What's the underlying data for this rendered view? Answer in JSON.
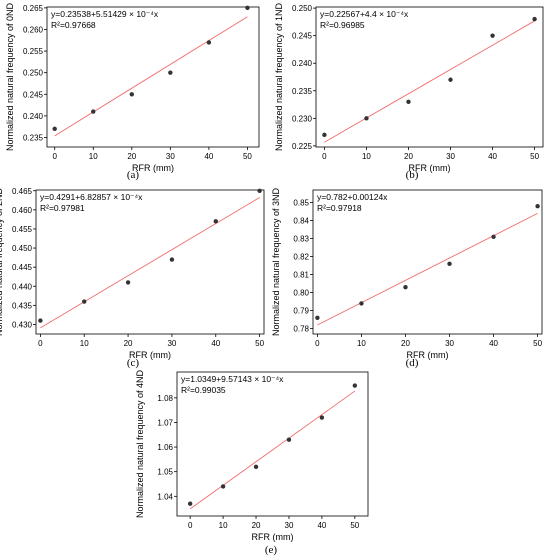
{
  "colors": {
    "fit_line": "#f26b6b",
    "point": "#333333",
    "axis": "#000000"
  },
  "chart_data": [
    {
      "type": "scatter",
      "panel_label": "(a)",
      "xlabel": "RFR (mm)",
      "ylabel": "Normalized natural frequency of 0ND",
      "xlim": [
        -2,
        53
      ],
      "ylim": [
        0.2328,
        0.2652
      ],
      "xticks": [
        0,
        10,
        20,
        30,
        40,
        50
      ],
      "xtick_labels": [
        "0",
        "10",
        "20",
        "30",
        "40",
        "50"
      ],
      "yticks": [
        0.235,
        0.24,
        0.245,
        0.25,
        0.255,
        0.26,
        0.265
      ],
      "ytick_labels": [
        "0.235",
        "0.240",
        "0.245",
        "0.250",
        "0.255",
        "0.260",
        "0.265"
      ],
      "x": [
        0,
        10,
        20,
        30,
        40,
        50
      ],
      "y": [
        0.237,
        0.241,
        0.245,
        0.25,
        0.257,
        0.265
      ],
      "fit": {
        "intercept": 0.23538,
        "slope": 0.000551429
      },
      "equation": "y=0.23538+5.51429 × 10⁻⁴x",
      "r2": "R²=0.97668"
    },
    {
      "type": "scatter",
      "panel_label": "(b)",
      "xlabel": "RFR (mm)",
      "ylabel": "Normalized natural frequency of 1ND",
      "xlim": [
        -2,
        52
      ],
      "ylim": [
        0.2248,
        0.2502
      ],
      "xticks": [
        0,
        10,
        20,
        30,
        40,
        50
      ],
      "xtick_labels": [
        "0",
        "10",
        "20",
        "30",
        "40",
        "50"
      ],
      "yticks": [
        0.225,
        0.23,
        0.235,
        0.24,
        0.245,
        0.25
      ],
      "ytick_labels": [
        "0.225",
        "0.230",
        "0.235",
        "0.240",
        "0.245",
        "0.250"
      ],
      "x": [
        0,
        10,
        20,
        30,
        40,
        50
      ],
      "y": [
        0.227,
        0.23,
        0.233,
        0.237,
        0.245,
        0.248
      ],
      "fit": {
        "intercept": 0.22567,
        "slope": 0.00044
      },
      "equation": "y=0.22567+4.4 × 10⁻⁴x",
      "r2": "R²=0.96985"
    },
    {
      "type": "scatter",
      "panel_label": "(c)",
      "xlabel": "RFR (mm)",
      "ylabel": "Normalized natural frequency of 2ND",
      "xlim": [
        -1,
        51
      ],
      "ylim": [
        0.4275,
        0.4652
      ],
      "xticks": [
        0,
        10,
        20,
        30,
        40,
        50
      ],
      "xtick_labels": [
        "0",
        "10",
        "20",
        "30",
        "40",
        "50"
      ],
      "yticks": [
        0.43,
        0.435,
        0.44,
        0.445,
        0.45,
        0.455,
        0.46,
        0.465
      ],
      "ytick_labels": [
        "0.430",
        "0.435",
        "0.440",
        "0.445",
        "0.450",
        "0.455",
        "0.460",
        "0.465"
      ],
      "x": [
        0,
        10,
        20,
        30,
        40,
        50
      ],
      "y": [
        0.431,
        0.436,
        0.441,
        0.447,
        0.457,
        0.465
      ],
      "fit": {
        "intercept": 0.4291,
        "slope": 0.000682857
      },
      "equation": "y=0.4291+6.82857 × 10⁻⁴x",
      "r2": "R²=0.97981"
    },
    {
      "type": "scatter",
      "panel_label": "(d)",
      "xlabel": "RFR (mm)",
      "ylabel": "Normalized natural frequency of 3ND",
      "xlim": [
        -1,
        51
      ],
      "ylim": [
        0.777,
        0.857
      ],
      "xticks": [
        0,
        10,
        20,
        30,
        40,
        50
      ],
      "xtick_labels": [
        "0",
        "10",
        "20",
        "30",
        "40",
        "50"
      ],
      "yticks": [
        0.78,
        0.79,
        0.8,
        0.81,
        0.82,
        0.83,
        0.84,
        0.85
      ],
      "ytick_labels": [
        "0.78",
        "0.79",
        "0.80",
        "0.81",
        "0.82",
        "0.83",
        "0.84",
        "0.85"
      ],
      "x": [
        0,
        10,
        20,
        30,
        40,
        50
      ],
      "y": [
        0.786,
        0.794,
        0.803,
        0.816,
        0.831,
        0.848
      ],
      "fit": {
        "intercept": 0.782,
        "slope": 0.00124
      },
      "equation": "y=0.782+0.00124x",
      "r2": "R²=0.97918"
    },
    {
      "type": "scatter",
      "panel_label": "(e)",
      "xlabel": "RFR (mm)",
      "ylabel": "Normalized natural frequency of 4ND",
      "xlim": [
        -4,
        54
      ],
      "ylim": [
        1.032,
        1.0905
      ],
      "xticks": [
        0,
        10,
        20,
        30,
        40,
        50
      ],
      "xtick_labels": [
        "0",
        "10",
        "20",
        "30",
        "40",
        "50"
      ],
      "yticks": [
        1.04,
        1.05,
        1.06,
        1.07,
        1.08
      ],
      "ytick_labels": [
        "1.04",
        "1.05",
        "1.06",
        "1.07",
        "1.08"
      ],
      "x": [
        0,
        10,
        20,
        30,
        40,
        50
      ],
      "y": [
        1.037,
        1.044,
        1.052,
        1.063,
        1.072,
        1.085
      ],
      "fit": {
        "intercept": 1.0349,
        "slope": 0.000957143
      },
      "equation": "y=1.0349+9.57143 × 10⁻⁴x",
      "r2": "R²=0.99035"
    }
  ]
}
